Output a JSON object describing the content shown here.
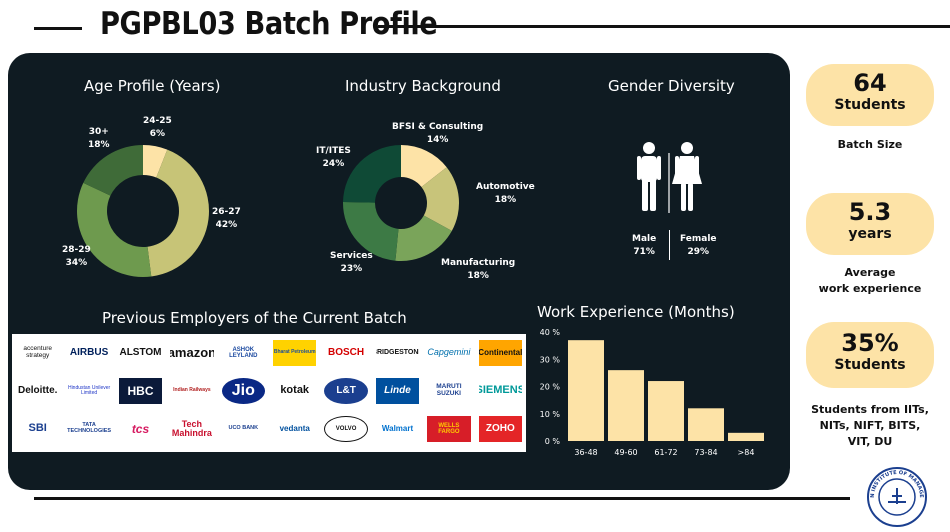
{
  "page": {
    "title": "PGPBL03 Batch Profile"
  },
  "age_profile": {
    "title": "Age Profile (Years)",
    "segments": [
      {
        "label": "24-25",
        "pct": "6%",
        "value": 6,
        "color": "#fde3a7"
      },
      {
        "label": "26-27",
        "pct": "42%",
        "value": 42,
        "color": "#c7c477"
      },
      {
        "label": "28-29",
        "pct": "34%",
        "value": 34,
        "color": "#6e9a4e"
      },
      {
        "label": "30+",
        "pct": "18%",
        "value": 18,
        "color": "#3f6b38"
      }
    ]
  },
  "industry": {
    "title": "Industry Background",
    "segments": [
      {
        "label": "BFSI & Consulting",
        "pct": "14%",
        "value": 14,
        "color": "#fde3a7"
      },
      {
        "label": "Automotive",
        "pct": "18%",
        "value": 18,
        "color": "#c8c47a"
      },
      {
        "label": "Manufacturing",
        "pct": "18%",
        "value": 18,
        "color": "#7aa45a"
      },
      {
        "label": "Services",
        "pct": "23%",
        "value": 23,
        "color": "#3d7a45"
      },
      {
        "label": "IT/ITES",
        "pct": "24%",
        "value": 24,
        "color": "#0f4a36"
      }
    ]
  },
  "gender": {
    "title": "Gender Diversity",
    "male_label": "Male",
    "male_pct": "71%",
    "female_label": "Female",
    "female_pct": "29%"
  },
  "employers": {
    "title": "Previous Employers of the Current Batch",
    "row1": [
      "accenture strategy",
      "AIRBUS",
      "ALSTOM",
      "amazon",
      "ASHOK LEYLAND",
      "Bharat Petroleum",
      "BOSCH",
      "BRIDGESTONE",
      "Capgemini",
      "Continental"
    ],
    "row2": [
      "Deloitte.",
      "Hindustan Unilever Limited",
      "HBC",
      "Indian Railways",
      "Jio",
      "kotak",
      "L&T",
      "Linde",
      "MARUTI SUZUKI",
      "SIEMENS"
    ],
    "row3": [
      "SBI",
      "TATA TECHNOLOGIES",
      "tcs",
      "Tech Mahindra",
      "UCO BANK",
      "vedanta",
      "VOLVO",
      "Walmart",
      "WELLS FARGO",
      "ZOHO"
    ]
  },
  "chart_data": {
    "type": "bar",
    "title": "Work Experience (Months)",
    "categories": [
      "36-48",
      "49-60",
      "61-72",
      "73-84",
      ">84"
    ],
    "values": [
      37,
      26,
      22,
      12,
      3
    ],
    "ylim": [
      0,
      40
    ],
    "yticks": [
      "0 %",
      "10 %",
      "20 %",
      "30 %",
      "40 %"
    ],
    "bar_color": "#fde3a7"
  },
  "stats": {
    "batch": {
      "number": "64",
      "unit": "Students",
      "caption": "Batch Size"
    },
    "experience": {
      "number": "5.3",
      "unit": "years",
      "caption_line1": "Average",
      "caption_line2": "work experience"
    },
    "institutes": {
      "number": "35%",
      "unit": "Students",
      "caption_line1": "Students from IITs,",
      "caption_line2": "NITs, NIFT, BITS,",
      "caption_line3": "VIT, DU"
    }
  },
  "seal": {
    "text": "INDIAN INSTITUTE OF MANAGEMENT"
  }
}
